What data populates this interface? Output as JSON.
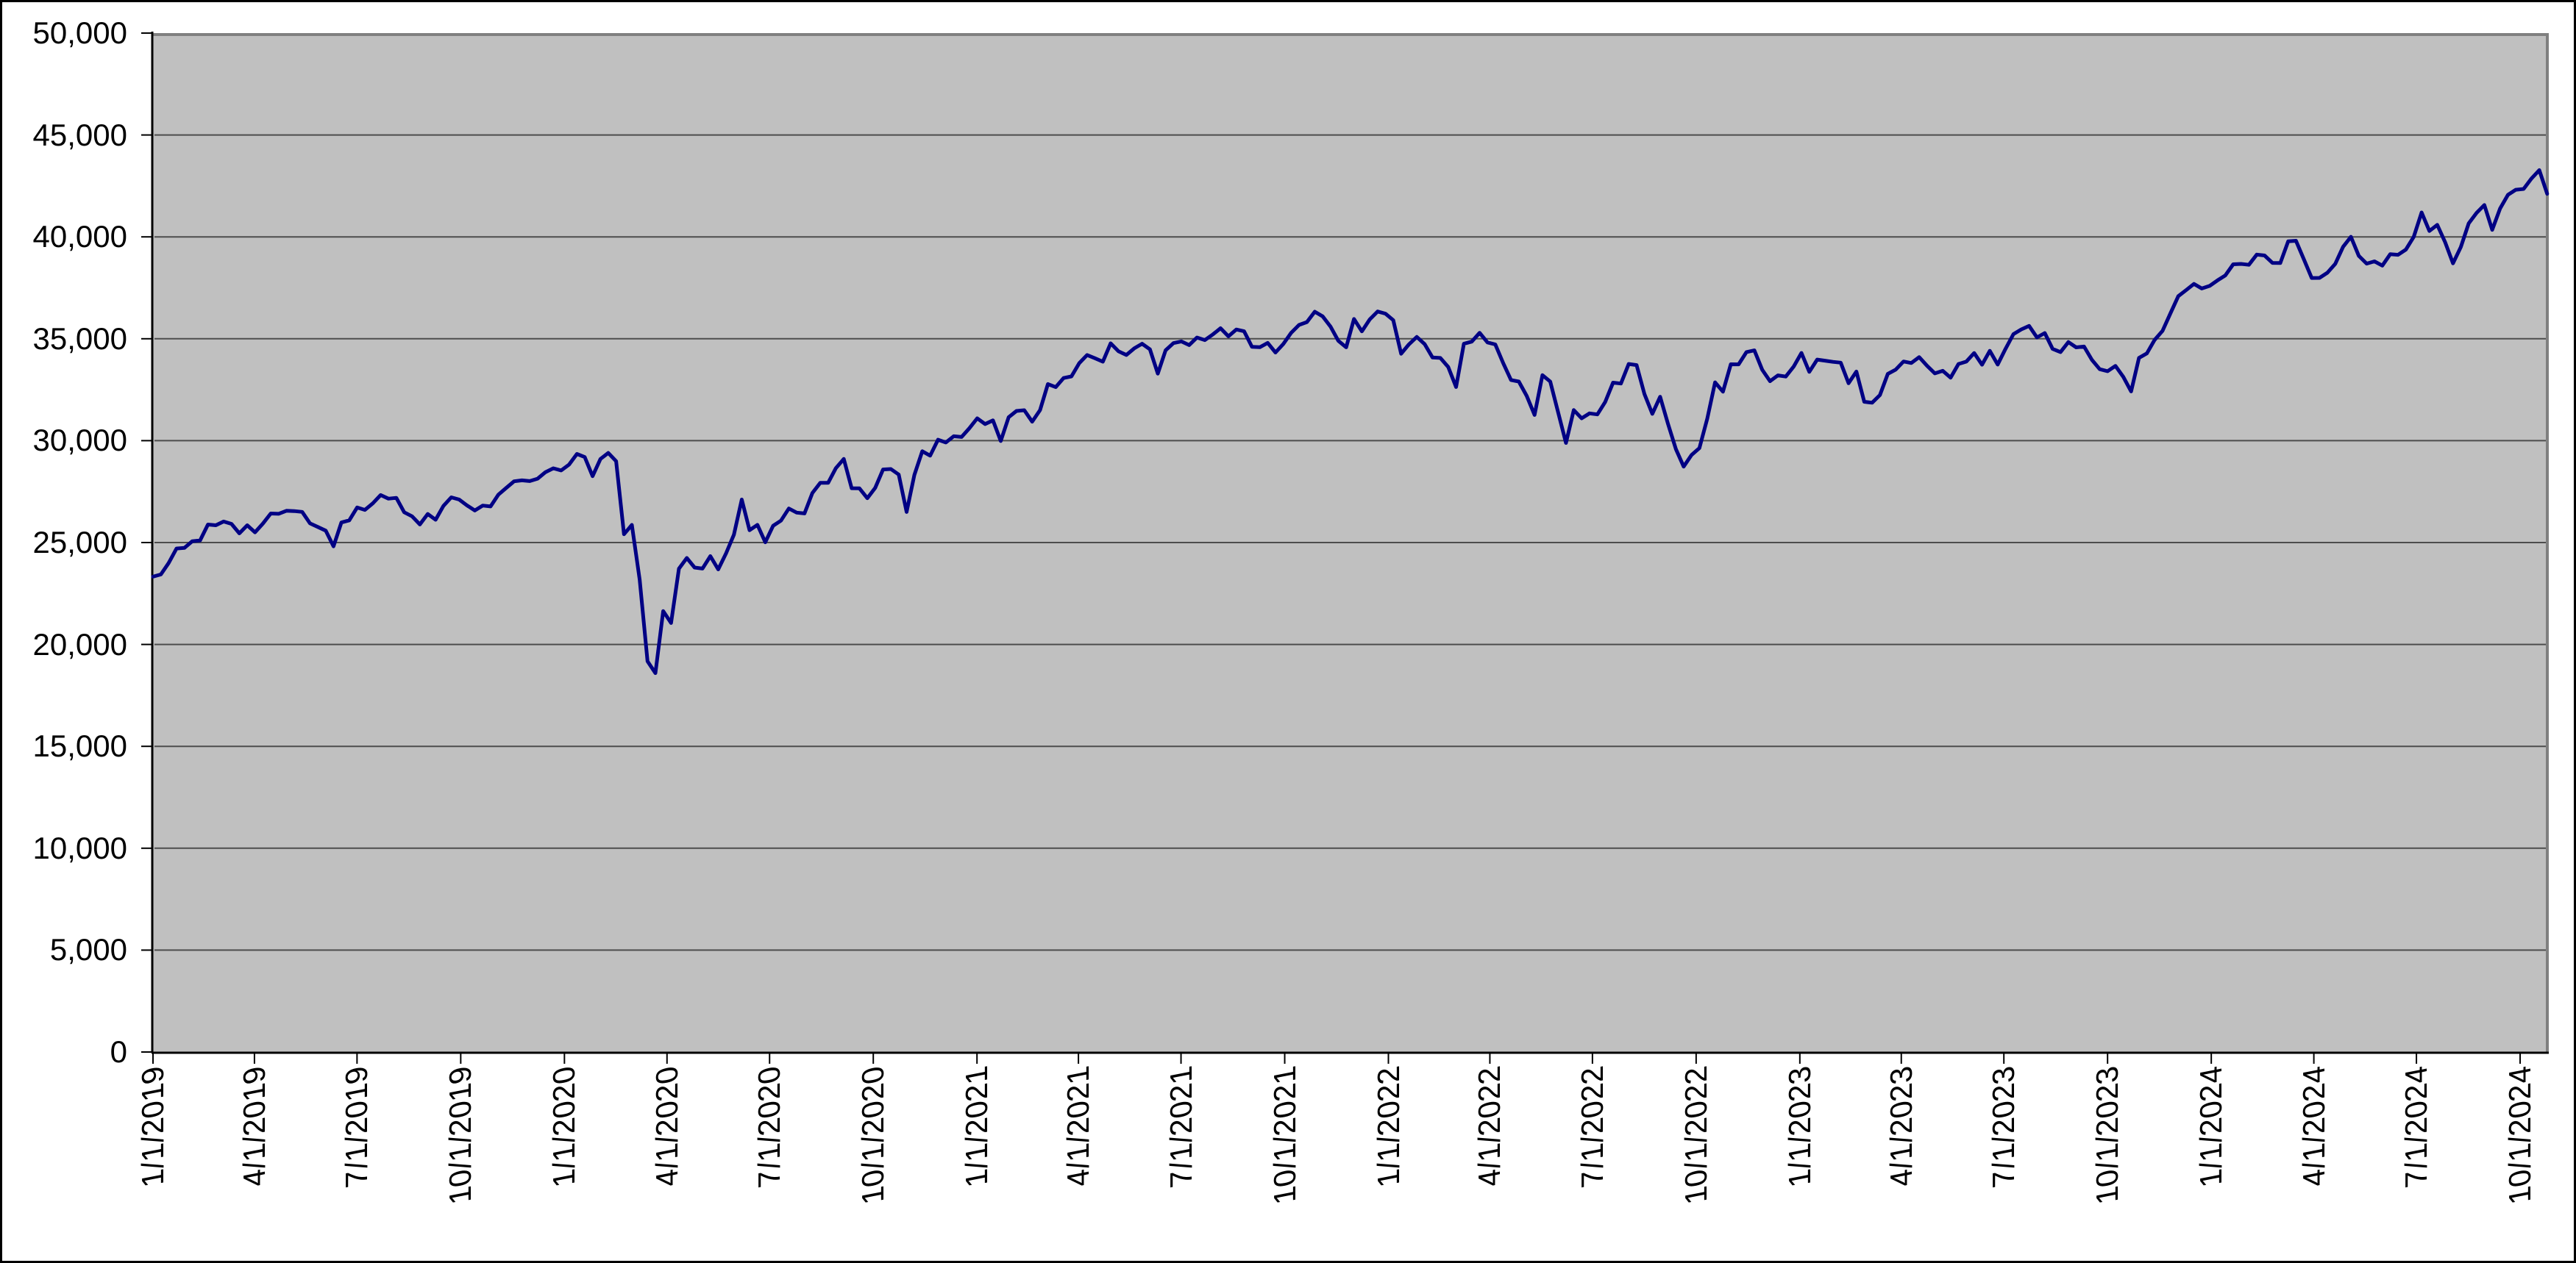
{
  "chart_data": {
    "type": "line",
    "grid": true,
    "legend": false,
    "x_axis": {
      "start": "1/1/2019",
      "end": "10/25/2024",
      "tick_labels": [
        "1/1/2019",
        "4/1/2019",
        "7/1/2019",
        "10/1/2019",
        "1/1/2020",
        "4/1/2020",
        "7/1/2020",
        "10/1/2020",
        "1/1/2021",
        "4/1/2021",
        "7/1/2021",
        "10/1/2021",
        "1/1/2022",
        "4/1/2022",
        "7/1/2022",
        "10/1/2022",
        "1/1/2023",
        "4/1/2023",
        "7/1/2023",
        "10/1/2023",
        "1/1/2024",
        "4/1/2024",
        "7/1/2024",
        "10/1/2024"
      ]
    },
    "y_axis": {
      "min": 0,
      "max": 50000,
      "step": 5000,
      "tick_labels": [
        "0",
        "5,000",
        "10,000",
        "15,000",
        "20,000",
        "25,000",
        "30,000",
        "35,000",
        "40,000",
        "45,000",
        "50,000"
      ]
    },
    "values": [
      23327,
      23433,
      23996,
      24706,
      24737,
      25064,
      25106,
      25883,
      25848,
      26032,
      25916,
      25450,
      25849,
      25502,
      25929,
      26425,
      26412,
      26560,
      26543,
      26505,
      25942,
      25764,
      25586,
      24815,
      25984,
      26090,
      26720,
      26600,
      26922,
      27332,
      27154,
      27192,
      26485,
      26287,
      25886,
      26403,
      26118,
      26797,
      27220,
      27110,
      26820,
      26574,
      26816,
      26770,
      27347,
      27681,
      28005,
      28051,
      28015,
      28135,
      28455,
      28645,
      28538,
      28824,
      29348,
      29196,
      28256,
      29103,
      29398,
      28992,
      25409,
      25865,
      23186,
      19174,
      18592,
      21637,
      21053,
      23719,
      24242,
      23775,
      23724,
      24331,
      23685,
      24465,
      25383,
      27111,
      25605,
      25871,
      25016,
      25827,
      26075,
      26672,
      26470,
      26428,
      27433,
      27931,
      27930,
      28654,
      29100,
      27666,
      27657,
      27174,
      27683,
      28587,
      28606,
      28336,
      26502,
      28323,
      29480,
      29263,
      30046,
      29910,
      30218,
      30179,
      30606,
      31098,
      30814,
      30997,
      29983,
      31148,
      31458,
      31494,
      30932,
      31496,
      32779,
      32628,
      33073,
      33153,
      33801,
      34201,
      34043,
      33875,
      34778,
      34382,
      34208,
      34529,
      34756,
      34480,
      33290,
      34434,
      34786,
      34870,
      34688,
      35062,
      34935,
      35209,
      35515,
      35120,
      35456,
      35369,
      34608,
      34585,
      34798,
      34326,
      34746,
      35295,
      35677,
      35820,
      36328,
      36100,
      35602,
      34899,
      34580,
      35971,
      35365,
      35950,
      36338,
      36232,
      35912,
      34265,
      34725,
      35090,
      34738,
      34079,
      34059,
      33615,
      32632,
      34755,
      34861,
      35294,
      34818,
      34721,
      33811,
      32977,
      32899,
      32197,
      31262,
      33213,
      32900,
      31393,
      29889,
      31500,
      31097,
      31338,
      31288,
      31899,
      32845,
      32803,
      33761,
      33707,
      32283,
      31318,
      32152,
      30822,
      29590,
      28726,
      29297,
      29635,
      31083,
      32862,
      32403,
      33748,
      33746,
      34347,
      34430,
      33476,
      32920,
      33204,
      33147,
      33631,
      34303,
      33375,
      33978,
      33926,
      33869,
      33827,
      32817,
      33391,
      31910,
      31862,
      32238,
      33274,
      33485,
      33886,
      33809,
      34098,
      33674,
      33301,
      33427,
      33093,
      33763,
      33877,
      34299,
      33727,
      34408,
      33735,
      34509,
      35228,
      35459,
      35630,
      35066,
      35281,
      34501,
      34347,
      34838,
      34577,
      34618,
      33964,
      33508,
      33408,
      33670,
      33127,
      32418,
      34061,
      34283,
      34947,
      35390,
      36246,
      37090,
      37386,
      37690,
      37466,
      37593,
      37864,
      38109,
      38654,
      38672,
      38628,
      39132,
      39087,
      38723,
      38715,
      39781,
      39807,
      38904,
      37983,
      37986,
      38240,
      38676,
      39513,
      40004,
      39070,
      38686,
      38799,
      38589,
      39150,
      39119,
      39376,
      40001,
      41198,
      40288,
      40589,
      39737,
      38703,
      39498,
      40660,
      41175,
      41563,
      40345,
      41394,
      42063,
      42313,
      42353,
      42864,
      43275,
      42114
    ],
    "colors": {
      "line": "#000084",
      "plot_background": "#c0c0c0",
      "plot_border": "#808080",
      "gridline": "#4d4d4d",
      "axis": "#000000",
      "canvas_background": "#ffffff",
      "canvas_border": "#000000",
      "label_text": "#000000"
    }
  }
}
